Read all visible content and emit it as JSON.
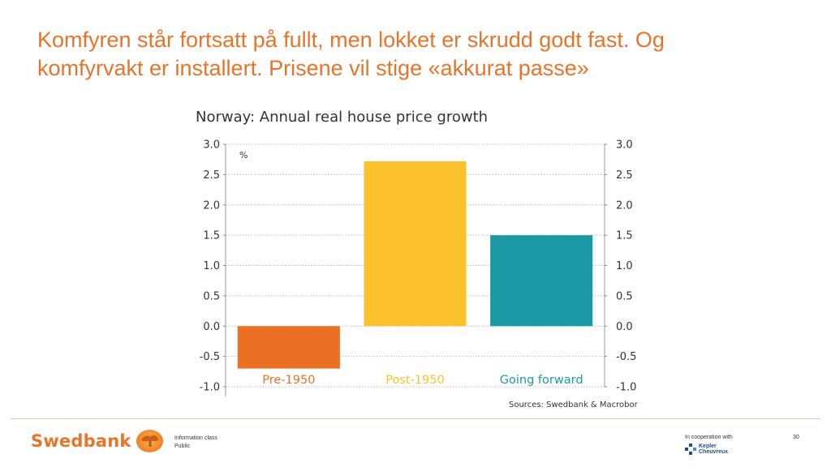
{
  "slide": {
    "title": "Komfyren står fortsatt på fullt, men lokket er skrudd godt fast. Og komfyrvakt er installert. Prisene vil stige «akkurat passe»"
  },
  "chart_data": {
    "type": "bar",
    "title": "Norway: Annual real house price growth",
    "unit_label": "%",
    "categories": [
      "Pre-1950",
      "Post-1950",
      "Going forward"
    ],
    "values": [
      -0.7,
      2.72,
      1.5
    ],
    "colors": [
      "#ec7024",
      "#f9c12b",
      "#1b9aa5"
    ],
    "ylim": [
      -1.0,
      3.0
    ],
    "yticks": [
      "3.0",
      "2.5",
      "2.0",
      "1.5",
      "1.0",
      "0.5",
      "0.0",
      "-0.5",
      "-1.0"
    ],
    "ytick_values": [
      3.0,
      2.5,
      2.0,
      1.5,
      1.0,
      0.5,
      0.0,
      -0.5,
      -1.0
    ],
    "grid": true,
    "source": "Sources: Swedbank & Macrobor"
  },
  "footer": {
    "brand": "Swedbank",
    "info_class_label": "Information class",
    "info_class_value": "Public",
    "cooperation": "In cooperation with",
    "partner_line1": "Kepler",
    "partner_line2": "Cheuvreux",
    "page_number": "30"
  }
}
